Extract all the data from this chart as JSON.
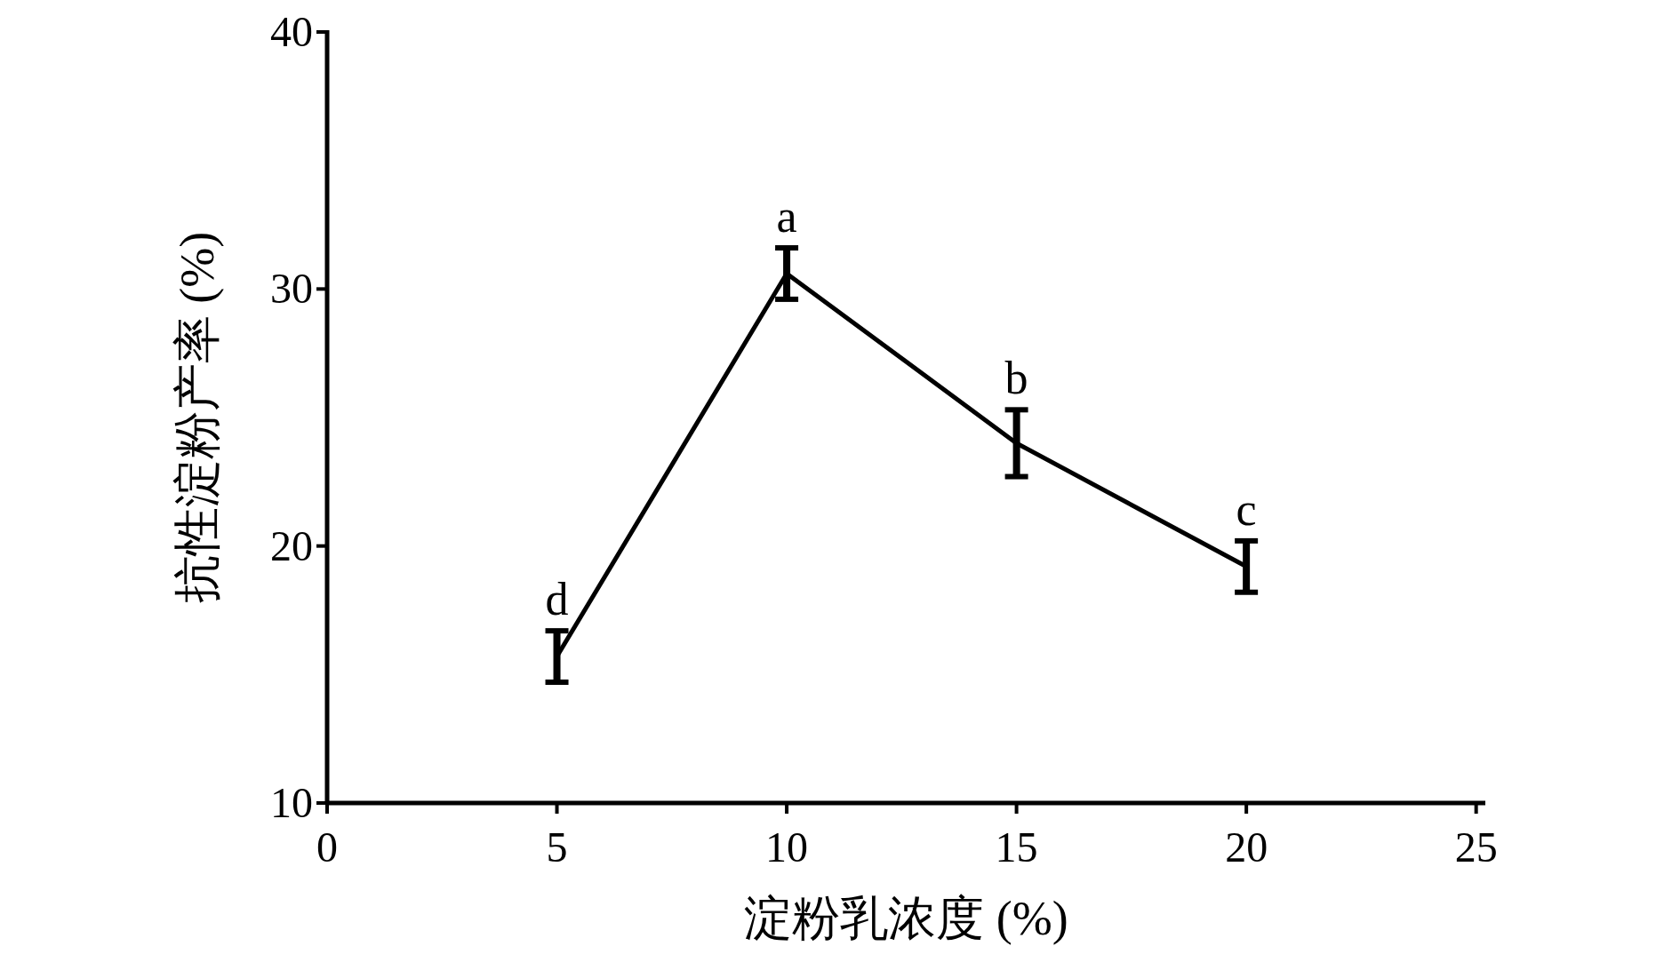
{
  "chart_data": {
    "type": "line",
    "xlabel": "淀粉乳浓度 (%)",
    "ylabel": "抗性淀粉产率 (%)",
    "x": [
      5,
      10,
      15,
      20
    ],
    "series": [
      {
        "color": "#000000",
        "values": [
          15.7,
          30.6,
          24.0,
          19.2
        ],
        "errors": [
          1.0,
          1.0,
          1.3,
          1.0
        ]
      }
    ],
    "xlim": [
      0,
      25.2
    ],
    "xticks": [
      0,
      5,
      10,
      15,
      20,
      25
    ],
    "ylim": [
      10,
      40
    ],
    "yticks": [
      10,
      20,
      30,
      40
    ],
    "annotations": [
      {
        "text": "d",
        "x": 5,
        "y": 15.7
      },
      {
        "text": "a",
        "x": 10,
        "y": 30.6
      },
      {
        "text": "b",
        "x": 15,
        "y": 24.0
      },
      {
        "text": "c",
        "x": 20,
        "y": 19.2
      }
    ]
  }
}
